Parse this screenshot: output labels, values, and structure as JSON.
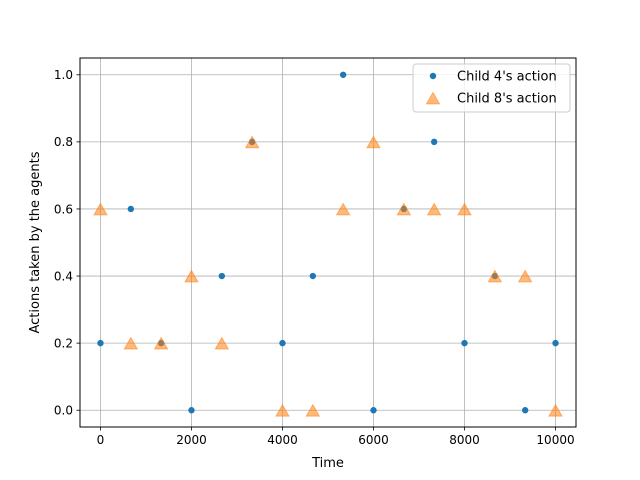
{
  "chart_data": {
    "type": "scatter",
    "title": "",
    "xlabel": "Time",
    "ylabel": "Actions taken by the agents",
    "xlim": [
      -450,
      10450
    ],
    "ylim": [
      -0.05,
      1.05
    ],
    "x_ticks": [
      0,
      2000,
      4000,
      6000,
      8000,
      10000
    ],
    "y_ticks": [
      0.0,
      0.2,
      0.4,
      0.6,
      0.8,
      1.0
    ],
    "x_tick_labels": [
      "0",
      "2000",
      "4000",
      "6000",
      "8000",
      "10000"
    ],
    "y_tick_labels": [
      "0.0",
      "0.2",
      "0.4",
      "0.6",
      "0.8",
      "1.0"
    ],
    "grid": true,
    "legend_position": "top-right",
    "series": [
      {
        "name": "Child 4's action",
        "marker": "circle",
        "color": "#1f77b4",
        "x": [
          0,
          667,
          1333,
          2000,
          2667,
          3333,
          4000,
          4667,
          5333,
          6000,
          6667,
          7333,
          8000,
          8667,
          9333,
          10000
        ],
        "y": [
          0.2,
          0.6,
          0.2,
          0.0,
          0.4,
          0.8,
          0.2,
          0.4,
          1.0,
          0.0,
          0.6,
          0.8,
          0.2,
          0.4,
          0.0,
          0.2
        ]
      },
      {
        "name": "Child 8's action",
        "marker": "triangle",
        "color": "#ff7f0e",
        "x": [
          0,
          667,
          1333,
          2000,
          2667,
          3333,
          4000,
          4667,
          5333,
          6000,
          6667,
          7333,
          8000,
          8667,
          9333,
          10000
        ],
        "y": [
          0.6,
          0.2,
          0.2,
          0.4,
          0.2,
          0.8,
          0.0,
          0.0,
          0.6,
          0.8,
          0.6,
          0.6,
          0.6,
          0.4,
          0.4,
          0.0
        ]
      }
    ]
  }
}
